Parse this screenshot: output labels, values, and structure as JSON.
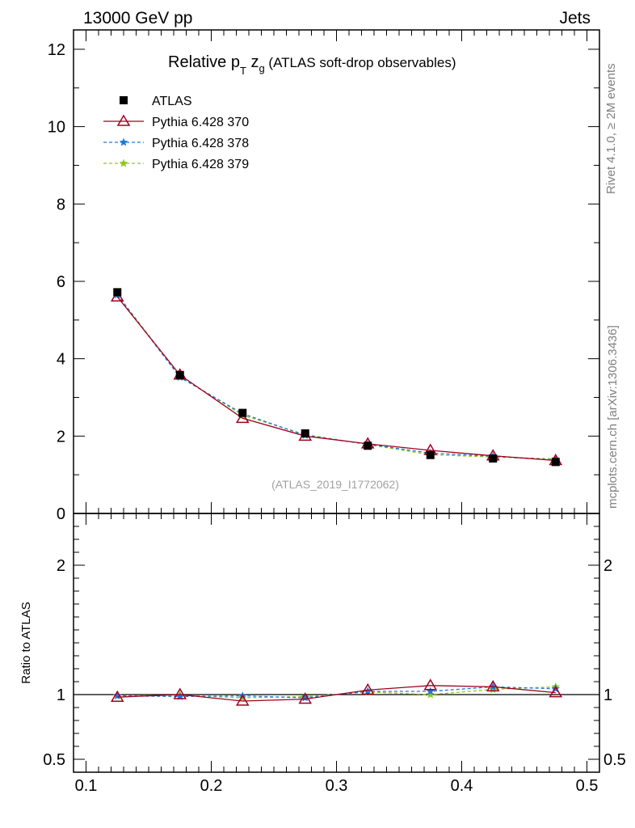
{
  "header": {
    "left": "13000 GeV pp",
    "right": "Jets"
  },
  "title": {
    "main": "Relative p",
    "sub_t": "T",
    "mid": " z",
    "sub_g": "g",
    "suffix": " (ATLAS soft-drop observables)"
  },
  "side_labels": {
    "rivet": "Rivet 4.1.0, ≥ 2M events",
    "mcplots": "mcplots.cern.ch [arXiv:1306.3436]"
  },
  "watermark": "(ATLAS_2019_I1772062)",
  "legend": [
    {
      "label": "ATLAS",
      "color": "#000000",
      "marker": "square"
    },
    {
      "label": "Pythia 6.428 370",
      "color": "#a00020",
      "marker": "triangle-open"
    },
    {
      "label": "Pythia 6.428 378",
      "color": "#1e78dc",
      "marker": "star"
    },
    {
      "label": "Pythia 6.428 379",
      "color": "#8cc81e",
      "marker": "star"
    }
  ],
  "ratio_ylabel": "Ratio to ATLAS",
  "chart_data": {
    "type": "line",
    "title": "Relative pT zg (ATLAS soft-drop observables)",
    "xlim": [
      0.09,
      0.51
    ],
    "x": [
      0.125,
      0.175,
      0.225,
      0.275,
      0.325,
      0.375,
      0.425,
      0.475
    ],
    "main": {
      "ylim": [
        0,
        12.5
      ],
      "yticks": [
        {
          "v": 0,
          "label": "0"
        },
        {
          "v": 2,
          "label": "2"
        },
        {
          "v": 4,
          "label": "4"
        },
        {
          "v": 6,
          "label": "6"
        },
        {
          "v": 8,
          "label": "8"
        },
        {
          "v": 10,
          "label": "10"
        },
        {
          "v": 12,
          "label": "12"
        }
      ],
      "series": [
        {
          "name": "ATLAS",
          "values": [
            5.72,
            3.58,
            2.6,
            2.07,
            1.75,
            1.51,
            1.42,
            1.33
          ]
        },
        {
          "name": "Pythia 6.428 370",
          "values": [
            5.6,
            3.58,
            2.46,
            2.0,
            1.8,
            1.63,
            1.49,
            1.37
          ]
        },
        {
          "name": "Pythia 6.428 378",
          "values": [
            5.65,
            3.52,
            2.58,
            2.02,
            1.79,
            1.56,
            1.48,
            1.38
          ]
        },
        {
          "name": "Pythia 6.428 379",
          "values": [
            5.66,
            3.55,
            2.54,
            2.04,
            1.78,
            1.52,
            1.46,
            1.41
          ]
        }
      ]
    },
    "ratio": {
      "ylim": [
        0.4,
        2.4
      ],
      "yticks": [
        {
          "v": 0.5,
          "label": "0.5"
        },
        {
          "v": 1,
          "label": "1"
        },
        {
          "v": 2,
          "label": "2"
        }
      ],
      "series": [
        {
          "name": "Pythia 6.428 370",
          "values": [
            0.98,
            1.0,
            0.95,
            0.965,
            1.035,
            1.07,
            1.06,
            1.015
          ]
        },
        {
          "name": "Pythia 6.428 378",
          "values": [
            0.99,
            0.985,
            0.99,
            0.975,
            1.025,
            1.025,
            1.06,
            1.045
          ]
        },
        {
          "name": "Pythia 6.428 379",
          "values": [
            0.99,
            0.995,
            0.975,
            0.985,
            1.02,
            1.0,
            1.04,
            1.06
          ]
        }
      ]
    },
    "xticks": [
      {
        "v": 0.1,
        "label": "0.1"
      },
      {
        "v": 0.2,
        "label": "0.2"
      },
      {
        "v": 0.3,
        "label": "0.3"
      },
      {
        "v": 0.4,
        "label": "0.4"
      },
      {
        "v": 0.5,
        "label": "0.5"
      }
    ]
  }
}
